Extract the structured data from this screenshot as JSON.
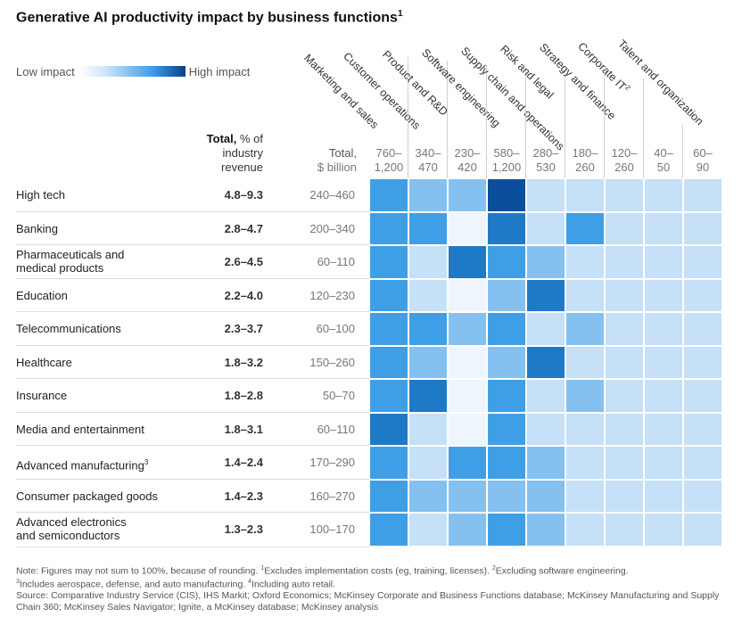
{
  "chart_data": {
    "type": "heatmap",
    "title": "Generative AI productivity impact by business functions",
    "title_footnote": "1",
    "legend": {
      "low_label": "Low impact",
      "high_label": "High impact",
      "colors": [
        "#ffffff",
        "#0b3f86"
      ]
    },
    "row_header_total": {
      "bold": "Total,",
      "rest": " % of industry revenue"
    },
    "row_header_billion": {
      "line1": "Total,",
      "line2": "$ billion"
    },
    "columns": [
      {
        "label": "Marketing and sales",
        "range": [
          "760–",
          "1,200"
        ]
      },
      {
        "label": "Customer operations",
        "range": [
          "340–",
          "470"
        ]
      },
      {
        "label": "Product and R&D",
        "range": [
          "230–",
          "420"
        ]
      },
      {
        "label": "Software engineering",
        "range": [
          "580–",
          "1,200"
        ]
      },
      {
        "label": "Supply chain and operations",
        "range": [
          "280–",
          "530"
        ]
      },
      {
        "label": "Risk and legal",
        "range": [
          "180–",
          "260"
        ]
      },
      {
        "label": "Strategy and finance",
        "range": [
          "120–",
          "260"
        ]
      },
      {
        "label": "Corporate IT",
        "label_sup": "2",
        "range": [
          "40–",
          "50"
        ]
      },
      {
        "label": "Talent and organization",
        "range": [
          "60–",
          "90"
        ]
      }
    ],
    "rows": [
      {
        "label": [
          "High tech"
        ],
        "total_pct": "4.8–9.3",
        "total_bil": "240–460",
        "levels": [
          3,
          2,
          2,
          5,
          1,
          1,
          1,
          1,
          1
        ]
      },
      {
        "label": [
          "Banking"
        ],
        "total_pct": "2.8–4.7",
        "total_bil": "200–340",
        "levels": [
          3,
          3,
          0,
          4,
          1,
          3,
          1,
          1,
          1
        ]
      },
      {
        "label": [
          "Pharmaceuticals and",
          "medical products"
        ],
        "total_pct": "2.6–4.5",
        "total_bil": "60–110",
        "levels": [
          3,
          1,
          4,
          3,
          2,
          1,
          1,
          1,
          1
        ]
      },
      {
        "label": [
          "Education"
        ],
        "total_pct": "2.2–4.0",
        "total_bil": "120–230",
        "levels": [
          3,
          1,
          0,
          2,
          4,
          1,
          1,
          1,
          1
        ]
      },
      {
        "label": [
          "Telecommunications"
        ],
        "total_pct": "2.3–3.7",
        "total_bil": "60–100",
        "levels": [
          3,
          3,
          2,
          3,
          1,
          2,
          1,
          1,
          1
        ]
      },
      {
        "label": [
          "Healthcare"
        ],
        "total_pct": "1.8–3.2",
        "total_bil": "150–260",
        "levels": [
          3,
          2,
          0,
          2,
          4,
          1,
          1,
          1,
          1
        ]
      },
      {
        "label": [
          "Insurance"
        ],
        "total_pct": "1.8–2.8",
        "total_bil": "50–70",
        "levels": [
          3,
          4,
          0,
          3,
          1,
          2,
          1,
          1,
          1
        ]
      },
      {
        "label": [
          "Media and entertainment"
        ],
        "total_pct": "1.8–3.1",
        "total_bil": "60–110",
        "levels": [
          4,
          1,
          0,
          3,
          1,
          1,
          1,
          1,
          1
        ]
      },
      {
        "label": [
          "Advanced manufacturing"
        ],
        "label_sup": "3",
        "total_pct": "1.4–2.4",
        "total_bil": "170–290",
        "levels": [
          3,
          1,
          3,
          3,
          2,
          1,
          1,
          1,
          1
        ]
      },
      {
        "label": [
          "Consumer packaged goods"
        ],
        "total_pct": "1.4–2.3",
        "total_bil": "160–270",
        "levels": [
          3,
          2,
          2,
          2,
          2,
          1,
          1,
          1,
          1
        ]
      },
      {
        "label": [
          "Advanced electronics",
          "and semiconductors"
        ],
        "total_pct": "1.3–2.3",
        "total_bil": "100–170",
        "levels": [
          3,
          1,
          2,
          3,
          2,
          1,
          1,
          1,
          1
        ]
      }
    ],
    "level_scale": "0 = lowest impact, 5 = highest impact",
    "level_colors": [
      "#eef5fd",
      "#c5e0f7",
      "#85c1f0",
      "#3f9fe6",
      "#1e7ac6",
      "#0b4f9c"
    ]
  },
  "notes": {
    "line1": "Note: Figures may not sum to 100%, because of rounding. ",
    "fn1": "1",
    "fn1_text": "Excludes implementation costs (eg, training, licenses). ",
    "fn2": "2",
    "fn2_text": "Excluding software engineering.",
    "fn3": "3",
    "fn3_text": "Includes aerospace, defense, and auto manufacturing. ",
    "fn4": "4",
    "fn4_text": "Including auto retail.",
    "source": "Source: Comparative Industry Service (CIS), IHS Markit; Oxford Economics; McKinsey Corporate and Business Functions database; McKinsey Manufacturing and Supply Chain 360; McKinsey Sales Navigator; Ignite, a McKinsey database; McKinsey analysis"
  }
}
